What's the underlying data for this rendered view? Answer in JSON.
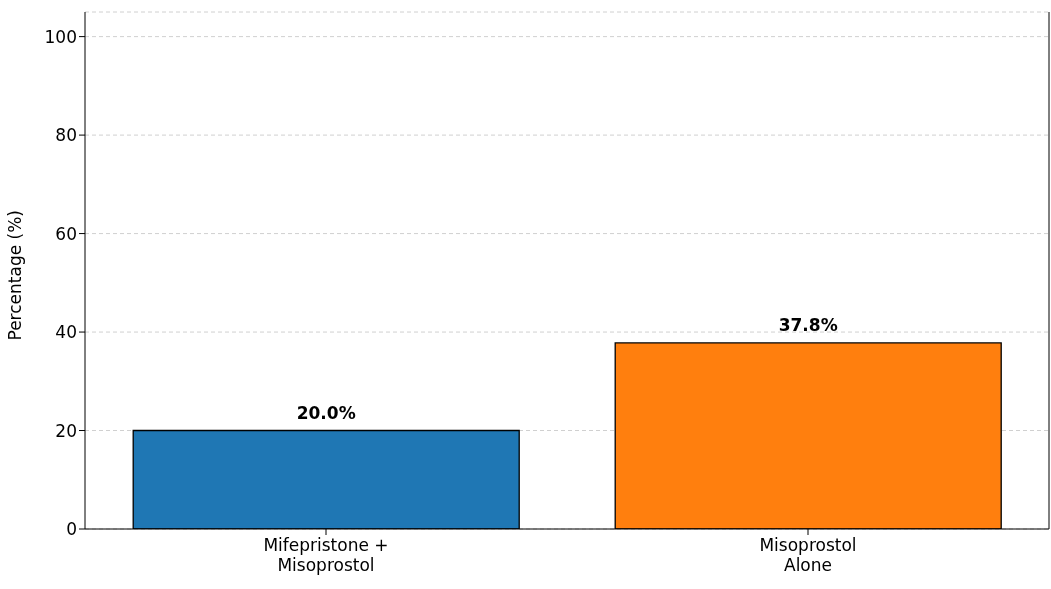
{
  "chart_data": {
    "type": "bar",
    "ylabel": "Percentage (%)",
    "categories": [
      "Mifepristone +\nMisoprostol",
      "Misoprostol\nAlone"
    ],
    "values": [
      20.0,
      37.8
    ],
    "colors": [
      "#1f77b4",
      "#ff7f0e"
    ],
    "value_labels": [
      "20.0%",
      "37.8%"
    ],
    "ylim": [
      0,
      105
    ],
    "yticks": [
      0,
      20,
      40,
      60,
      80,
      100
    ],
    "grid": "y"
  }
}
